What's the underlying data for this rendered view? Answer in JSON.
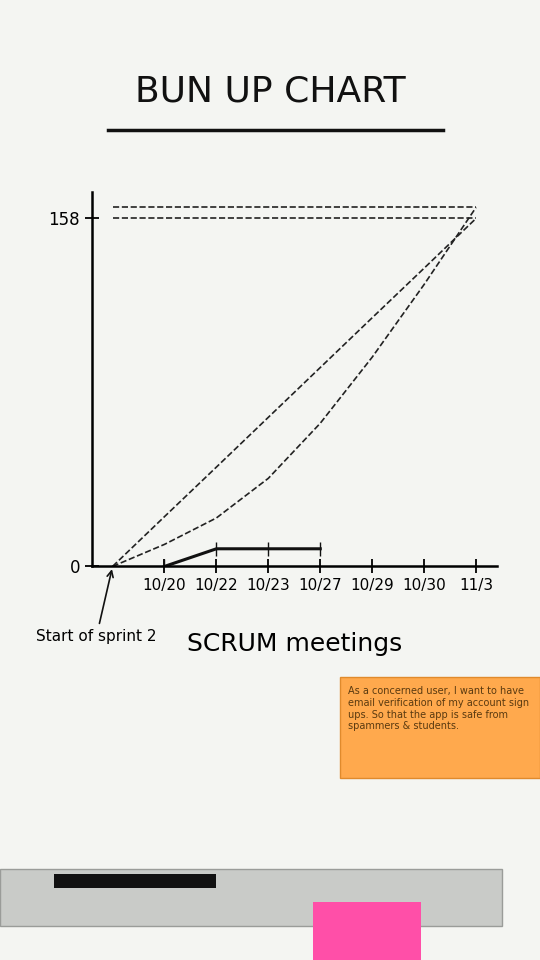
{
  "chart_data": {
    "type": "line",
    "title": "BUN UP CHART",
    "x_label": "SCRUM meetings",
    "categories": [
      null,
      "10/20",
      "10/22",
      "10/23",
      "10/27",
      "10/29",
      "10/30",
      "11/3"
    ],
    "ylim": [
      0,
      170
    ],
    "yticks": [
      0,
      158
    ],
    "grid": false,
    "series": [
      {
        "color": "#111111",
        "line_style": "solid",
        "values": [
          null,
          0,
          8,
          8,
          8,
          null,
          null,
          null
        ]
      },
      {
        "color": "#222222",
        "line_style": "dashed",
        "values": [
          0,
          22.6,
          45.1,
          67.7,
          90.3,
          112.9,
          135.4,
          158
        ]
      },
      {
        "color": "#222222",
        "line_style": "dashed",
        "values": [
          0,
          10,
          22,
          40,
          65,
          95,
          128,
          163
        ]
      },
      {
        "color": "#222222",
        "line_style": "dashed",
        "values": [
          158,
          158,
          158,
          158,
          158,
          158,
          158,
          158
        ]
      },
      {
        "color": "#222222",
        "line_style": "dashed",
        "values": [
          163,
          163,
          163,
          163,
          163,
          163,
          163,
          163
        ]
      }
    ],
    "annotations": [
      {
        "text": "Start of sprint 2",
        "x": 0,
        "y": 0
      }
    ],
    "sticky_note": "As a concerned user, I want to have email verification of my account sign ups. So that the app is safe from spammers & students."
  }
}
